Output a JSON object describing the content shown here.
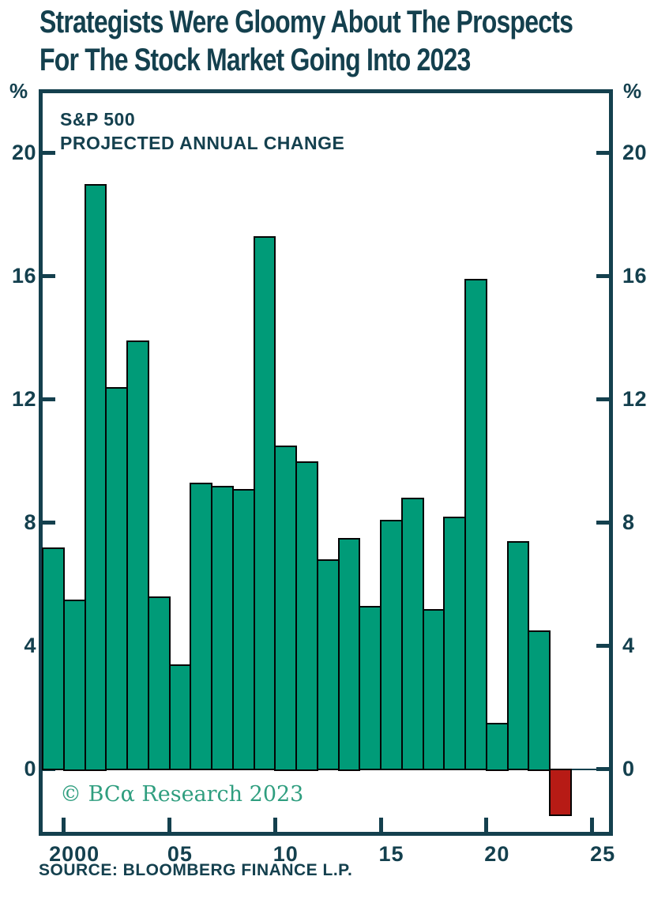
{
  "title": {
    "line1": "Strategists Were Gloomy About The Prospects",
    "line2": "For The Stock Market Going Into 2023"
  },
  "chart": {
    "header_line1": "S&P 500",
    "header_line2": "PROJECTED ANNUAL CHANGE",
    "percent_left": "%",
    "percent_right": "%",
    "copyright": "© BCα Research 2023",
    "source": "SOURCE: BLOOMBERG FINANCE L.P."
  },
  "chart_data": {
    "type": "bar",
    "title": "S&P 500 Projected Annual Change",
    "ylabel": "%",
    "categories": [
      1999,
      2000,
      2001,
      2002,
      2003,
      2004,
      2005,
      2006,
      2007,
      2008,
      2009,
      2010,
      2011,
      2012,
      2013,
      2014,
      2015,
      2016,
      2017,
      2018,
      2019,
      2020,
      2021,
      2022,
      2023
    ],
    "values": [
      7.2,
      5.5,
      19.0,
      12.4,
      13.9,
      5.6,
      3.4,
      9.3,
      9.2,
      9.1,
      17.3,
      10.5,
      10.0,
      6.8,
      7.5,
      5.3,
      8.1,
      8.8,
      5.2,
      8.2,
      15.9,
      1.5,
      7.4,
      4.5,
      -1.5
    ],
    "yticks": [
      0,
      4,
      8,
      12,
      16,
      20
    ],
    "ylim": [
      -2.0,
      21.9
    ],
    "xtick_years": [
      2000,
      2005,
      2010,
      2015,
      2020,
      2025
    ],
    "xtick_labels": [
      "2000",
      "05",
      "10",
      "15",
      "20",
      "25"
    ],
    "xlim_years": [
      1999,
      2026
    ],
    "grid": false,
    "legend": "none",
    "positive_bar_color": "#009b78",
    "negative_bar_color": "#b71b15",
    "bar_outline_color": "#040404",
    "axis_color": "#14404e",
    "copyright_color": "#2f9e7f"
  }
}
